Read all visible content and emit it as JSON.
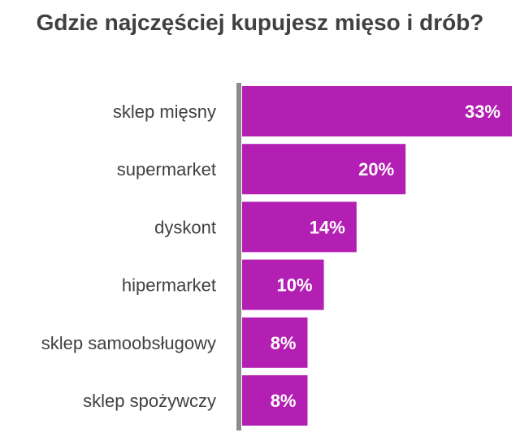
{
  "chart_data": {
    "type": "bar",
    "orientation": "horizontal",
    "title": "Gdzie najczęściej kupujesz mięso i drób?",
    "categories": [
      "sklep mięsny",
      "supermarket",
      "dyskont",
      "hipermarket",
      "sklep samoobsługowy",
      "sklep spożywczy"
    ],
    "values": [
      33,
      20,
      14,
      10,
      8,
      8
    ],
    "data_labels": [
      "33%",
      "20%",
      "14%",
      "10%",
      "8%",
      "8%"
    ],
    "unit": "%",
    "xlim": [
      0,
      33
    ],
    "grid": false,
    "legend": "none",
    "colors": {
      "bar": "#b31fb2",
      "axis": "#8c8c8c",
      "category_text": "#404040",
      "label_text": "#ffffff"
    }
  }
}
